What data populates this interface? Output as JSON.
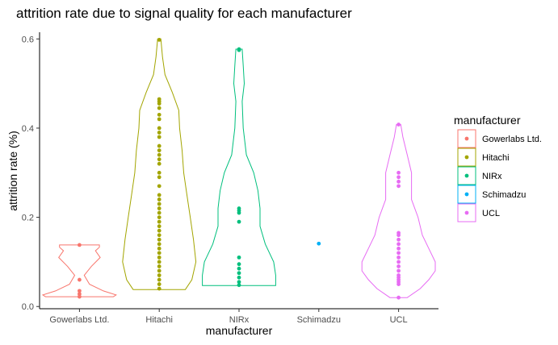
{
  "chart_data": {
    "type": "violin",
    "title": "attrition rate due to signal quality for each manufacturer",
    "xlabel": "manufacturer",
    "ylabel": "attrition rate (%)",
    "ylim": [
      -0.005,
      0.615
    ],
    "yticks": [
      0.0,
      0.2,
      0.4,
      0.6
    ],
    "ytick_labels": [
      "0.0",
      "0.2",
      "0.4",
      "0.6"
    ],
    "grid": false,
    "legend": {
      "title": "manufacturer",
      "placement": "right"
    },
    "categories": [
      "Gowerlabs Ltd.",
      "Hitachi",
      "NIRx",
      "Schimadzu",
      "UCL"
    ],
    "series": [
      {
        "name": "Gowerlabs Ltd.",
        "color": "#F8766D",
        "points": [
          0.138,
          0.06,
          0.035,
          0.028,
          0.022
        ],
        "violin": [
          [
            0.022,
            0.085
          ],
          [
            0.026,
            0.092
          ],
          [
            0.035,
            0.06
          ],
          [
            0.05,
            0.025
          ],
          [
            0.07,
            0.012
          ],
          [
            0.09,
            0.03
          ],
          [
            0.11,
            0.052
          ],
          [
            0.125,
            0.04
          ],
          [
            0.133,
            0.05
          ],
          [
            0.138,
            0.05
          ]
        ]
      },
      {
        "name": "Hitachi",
        "color": "#A3A500",
        "points": [
          0.598,
          0.465,
          0.46,
          0.455,
          0.445,
          0.43,
          0.42,
          0.4,
          0.39,
          0.38,
          0.36,
          0.35,
          0.34,
          0.33,
          0.32,
          0.3,
          0.29,
          0.27,
          0.25,
          0.24,
          0.23,
          0.22,
          0.21,
          0.2,
          0.19,
          0.18,
          0.17,
          0.16,
          0.15,
          0.14,
          0.13,
          0.12,
          0.11,
          0.1,
          0.09,
          0.08,
          0.07,
          0.06,
          0.05,
          0.04
        ],
        "violin": [
          [
            0.038,
            0.032
          ],
          [
            0.06,
            0.04
          ],
          [
            0.1,
            0.045
          ],
          [
            0.15,
            0.042
          ],
          [
            0.2,
            0.038
          ],
          [
            0.25,
            0.034
          ],
          [
            0.3,
            0.03
          ],
          [
            0.35,
            0.028
          ],
          [
            0.4,
            0.025
          ],
          [
            0.44,
            0.024
          ],
          [
            0.48,
            0.016
          ],
          [
            0.52,
            0.007
          ],
          [
            0.56,
            0.004
          ],
          [
            0.6,
            0.002
          ]
        ]
      },
      {
        "name": "NIRx",
        "color": "#00BF7D",
        "points": [
          0.577,
          0.575,
          0.22,
          0.215,
          0.21,
          0.19,
          0.11,
          0.095,
          0.085,
          0.075,
          0.065,
          0.055,
          0.048
        ],
        "violin": [
          [
            0.047,
            0.035
          ],
          [
            0.07,
            0.035
          ],
          [
            0.1,
            0.033
          ],
          [
            0.14,
            0.025
          ],
          [
            0.18,
            0.02
          ],
          [
            0.22,
            0.02
          ],
          [
            0.26,
            0.018
          ],
          [
            0.3,
            0.014
          ],
          [
            0.34,
            0.007
          ],
          [
            0.4,
            0.004
          ],
          [
            0.46,
            0.003
          ],
          [
            0.5,
            0.005
          ],
          [
            0.54,
            0.004
          ],
          [
            0.577,
            0.003
          ]
        ]
      },
      {
        "name": "Schimadzu",
        "color": "#00B0F6",
        "points": [
          0.141
        ],
        "violin": []
      },
      {
        "name": "UCL",
        "color": "#E76BF3",
        "points": [
          0.408,
          0.3,
          0.29,
          0.28,
          0.27,
          0.165,
          0.16,
          0.15,
          0.14,
          0.13,
          0.12,
          0.11,
          0.1,
          0.09,
          0.08,
          0.07,
          0.065,
          0.06,
          0.055,
          0.05,
          0.02
        ],
        "violin": [
          [
            0.02,
            0.008
          ],
          [
            0.04,
            0.02
          ],
          [
            0.06,
            0.028
          ],
          [
            0.08,
            0.034
          ],
          [
            0.1,
            0.034
          ],
          [
            0.13,
            0.028
          ],
          [
            0.16,
            0.022
          ],
          [
            0.2,
            0.018
          ],
          [
            0.24,
            0.012
          ],
          [
            0.27,
            0.012
          ],
          [
            0.3,
            0.012
          ],
          [
            0.34,
            0.008
          ],
          [
            0.38,
            0.004
          ],
          [
            0.408,
            0.002
          ]
        ]
      }
    ]
  }
}
